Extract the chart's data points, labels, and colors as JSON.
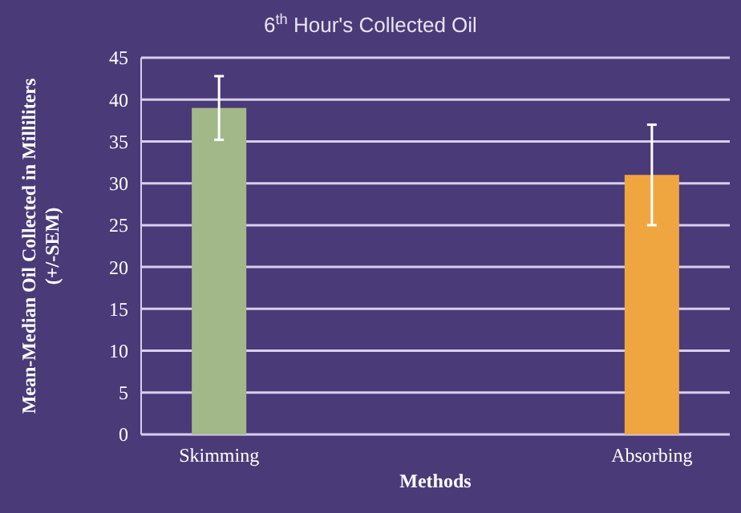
{
  "chart_data": {
    "type": "bar",
    "title": "6$^{th}$ Hour's Collected Oil",
    "xlabel": "Methods",
    "ylabel": "Mean-Median Oil Collected in Milliliters (+/-SEM)",
    "categories": [
      "Skimming",
      "Absorbing"
    ],
    "values": [
      39,
      31
    ],
    "colors": [
      "#a3b889",
      "#f0a640"
    ],
    "errors": [
      3.8,
      6
    ],
    "ylim": [
      0,
      45
    ],
    "yticks": [
      0,
      5,
      10,
      15,
      20,
      25,
      30,
      35,
      40,
      45
    ],
    "grid": "y"
  }
}
